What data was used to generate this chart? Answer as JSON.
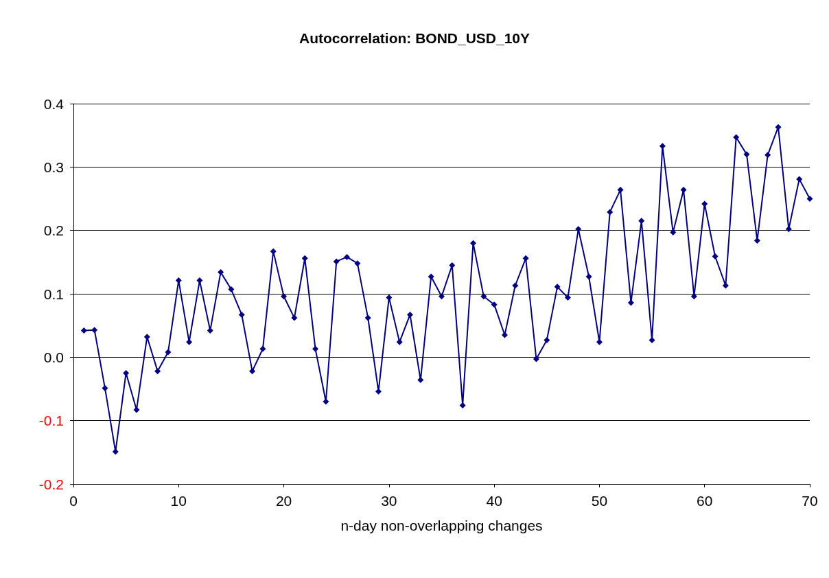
{
  "chart_data": {
    "type": "line",
    "title": "Autocorrelation: BOND_USD_10Y",
    "xlabel": "n-day non-overlapping changes",
    "x": [
      1,
      2,
      3,
      4,
      5,
      6,
      7,
      8,
      9,
      10,
      11,
      12,
      13,
      14,
      15,
      16,
      17,
      18,
      19,
      20,
      21,
      22,
      23,
      24,
      25,
      26,
      27,
      28,
      29,
      30,
      31,
      32,
      33,
      34,
      35,
      36,
      37,
      38,
      39,
      40,
      41,
      42,
      43,
      44,
      45,
      46,
      47,
      48,
      49,
      50,
      51,
      52,
      53,
      54,
      55,
      56,
      57,
      58,
      59,
      60,
      61,
      62,
      63,
      64,
      65,
      66,
      67,
      68,
      69,
      70
    ],
    "series": [
      {
        "color": "#000080",
        "values": [
          0.042,
          0.043,
          -0.049,
          -0.149,
          -0.025,
          -0.083,
          0.032,
          -0.022,
          0.008,
          0.121,
          0.024,
          0.121,
          0.042,
          0.134,
          0.107,
          0.067,
          -0.022,
          0.013,
          0.167,
          0.096,
          0.062,
          0.156,
          0.013,
          -0.07,
          0.151,
          0.158,
          0.148,
          0.062,
          -0.054,
          0.094,
          0.024,
          0.067,
          -0.036,
          0.127,
          0.096,
          0.145,
          -0.076,
          0.18,
          0.096,
          0.083,
          0.035,
          0.113,
          0.156,
          -0.003,
          0.027,
          0.111,
          0.094,
          0.202,
          0.127,
          0.024,
          0.229,
          0.264,
          0.086,
          0.215,
          0.027,
          0.333,
          0.197,
          0.264,
          0.096,
          0.242,
          0.159,
          0.113,
          0.347,
          0.32,
          0.184,
          0.319,
          0.363,
          0.202,
          0.281,
          0.25
        ]
      }
    ],
    "xlim": [
      0,
      70
    ],
    "xticks": [
      0,
      10,
      20,
      30,
      40,
      50,
      60,
      70
    ],
    "ylim": [
      -0.2,
      0.4
    ],
    "yticks": [
      -0.2,
      -0.1,
      {
        "value": 0,
        "label": "0.0"
      },
      0.1,
      0.2,
      0.3,
      0.4
    ],
    "grid": "y",
    "marker": "diamond",
    "line_style": "solid",
    "legend": false
  }
}
